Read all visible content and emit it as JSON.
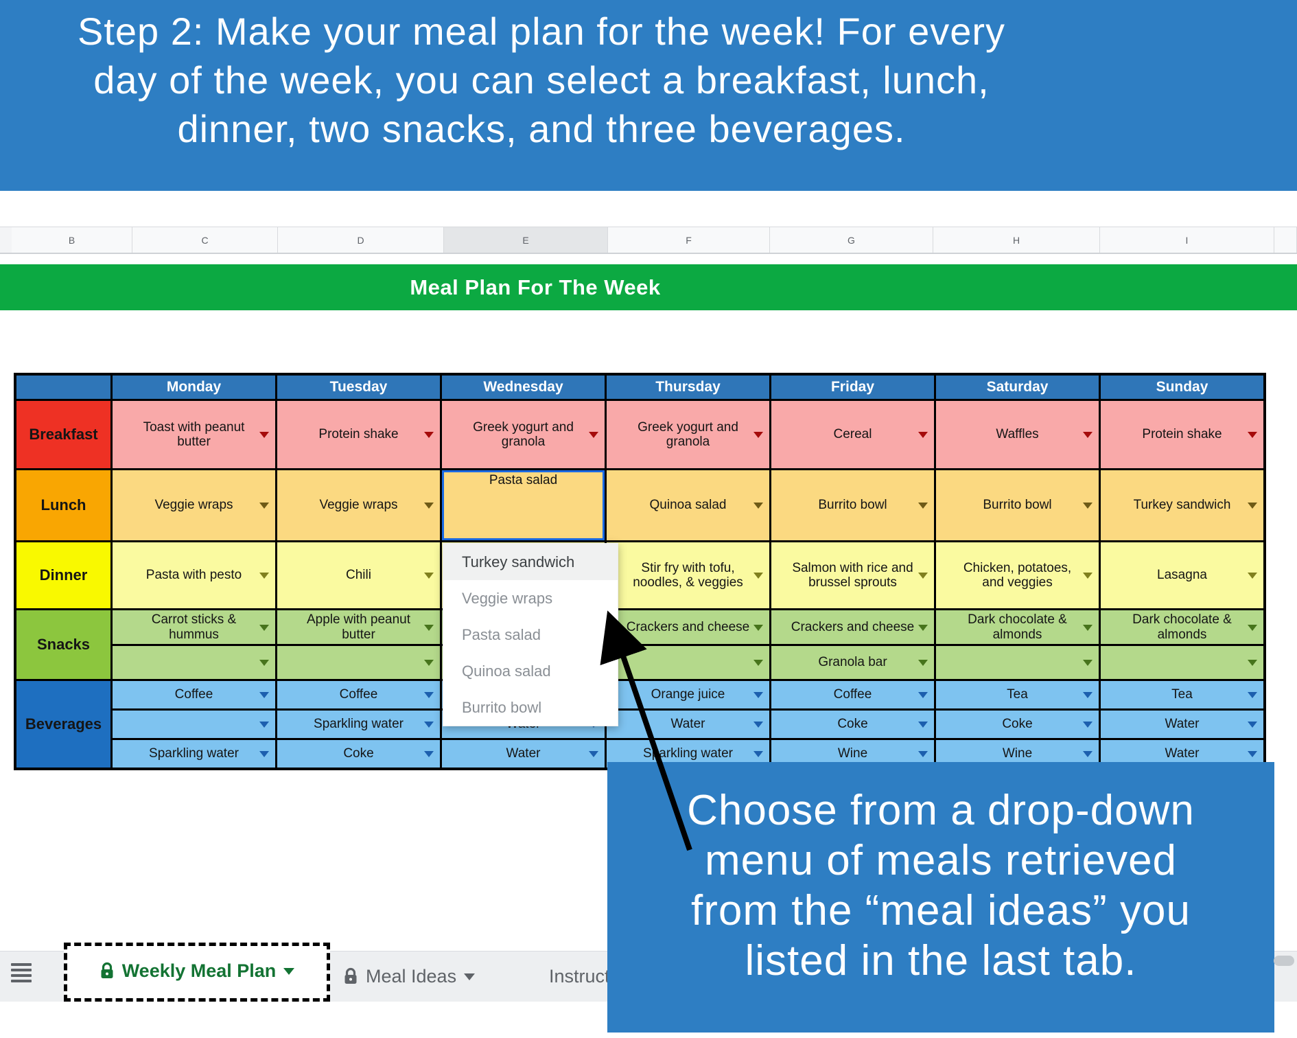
{
  "banner": {
    "bg": "#2e7ec3",
    "lines": [
      "Step 2: Make your meal plan for the week! For every",
      "day of the week, you can select a breakfast, lunch,",
      "dinner, two snacks, and three beverages."
    ]
  },
  "spreadsheet": {
    "column_headers": [
      "B",
      "C",
      "D",
      "E",
      "F",
      "G",
      "H",
      "I"
    ],
    "highlighted_column": "E",
    "title_bar": {
      "text": "Meal Plan For The Week",
      "bg": "#0ca942"
    }
  },
  "meal_table": {
    "header_bg": "#2f76b8",
    "days": [
      "Monday",
      "Tuesday",
      "Wednesday",
      "Thursday",
      "Friday",
      "Saturday",
      "Sunday"
    ],
    "groups": [
      {
        "label": "Breakfast",
        "label_bg": "#ee3124",
        "cell_bg": "#f9a9a9",
        "arrow_color": "#a50b0b",
        "rows": [
          [
            "Toast with peanut butter",
            "Protein shake",
            "Greek yogurt and granola",
            "Greek yogurt and granola",
            "Cereal",
            "Waffles",
            "Protein shake"
          ]
        ]
      },
      {
        "label": "Lunch",
        "label_bg": "#f9a602",
        "cell_bg": "#fbd981",
        "arrow_color": "#6e5a16",
        "rows": [
          [
            "Veggie wraps",
            "Veggie wraps",
            "Pasta salad",
            "Quinoa salad",
            "Burrito bowl",
            "Burrito bowl",
            "Turkey sandwich"
          ]
        ]
      },
      {
        "label": "Dinner",
        "label_bg": "#f9f900",
        "cell_bg": "#fafaa0",
        "arrow_color": "#80801e",
        "rows": [
          [
            "Pasta with pesto",
            "Chili",
            "",
            "Stir fry with tofu, noodles, & veggies",
            "Salmon with rice and brussel sprouts",
            "Chicken, potatoes, and veggies",
            "Lasagna"
          ]
        ]
      },
      {
        "label": "Snacks",
        "label_bg": "#8cc63e",
        "cell_bg": "#b4d98b",
        "arrow_color": "#47741c",
        "rows": [
          [
            "Carrot sticks & hummus",
            "Apple with peanut butter",
            "",
            "Crackers and cheese",
            "Crackers and cheese",
            "Dark chocolate & almonds",
            "Dark chocolate & almonds"
          ],
          [
            "",
            "",
            "",
            "",
            "Granola bar",
            "",
            ""
          ]
        ]
      },
      {
        "label": "Beverages",
        "label_bg": "#1e6fc0",
        "cell_bg": "#7ec3f0",
        "arrow_color": "#1c5fae",
        "rows": [
          [
            "Coffee",
            "Coffee",
            "",
            "Orange juice",
            "Coffee",
            "Tea",
            "Tea"
          ],
          [
            "",
            "Sparkling water",
            "Water",
            "Water",
            "Coke",
            "Coke",
            "Water"
          ],
          [
            "Sparkling water",
            "Coke",
            "Water",
            "Sparkling water",
            "Wine",
            "Wine",
            "Water"
          ]
        ]
      }
    ],
    "selected_cell": {
      "group": "Lunch",
      "row": 0,
      "day_index": 2,
      "value": "Pasta salad"
    }
  },
  "dropdown": {
    "items": [
      "Turkey sandwich",
      "Veggie wraps",
      "Pasta salad",
      "Quinoa salad",
      "Burrito bowl"
    ],
    "highlighted_index": 0
  },
  "callout": {
    "bg": "#2e7ec3",
    "lines": [
      "Choose from a drop-down",
      "menu of meals retrieved",
      "from the “meal ideas” you",
      "listed in the last tab."
    ]
  },
  "tabbar": {
    "tabs": [
      {
        "label": "Weekly Meal Plan",
        "locked": true,
        "lock_color": "#137333",
        "active": true
      },
      {
        "label": "Meal Ideas",
        "locked": true,
        "lock_color": "#5f6368",
        "active": false
      },
      {
        "label": "Instructions",
        "locked": false,
        "lock_color": "",
        "active": false
      }
    ]
  }
}
